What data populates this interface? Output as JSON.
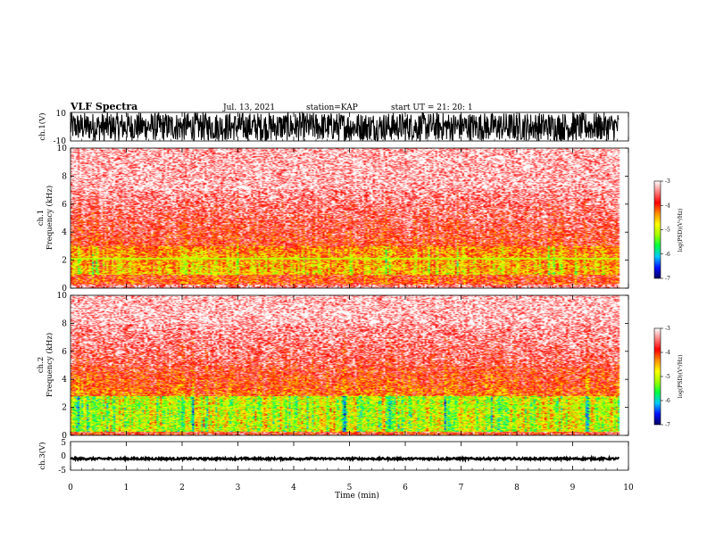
{
  "header": {
    "title": "VLF Spectra",
    "date": "Jul. 13, 2021",
    "station": "station=KAP",
    "start": "start UT =  21: 20: 1"
  },
  "chart_data": [
    {
      "type": "line",
      "panel": "ch1-waveform",
      "ylabel": "ch.1(V)",
      "ylim": [
        -10,
        10
      ],
      "yticks": [
        "10",
        "-10"
      ],
      "xlim": [
        0,
        10
      ],
      "x_extent_min": 9.83,
      "character": "dense noise spanning roughly -10 to 10 V"
    },
    {
      "type": "heatmap",
      "panel": "ch1-spectrogram",
      "ylabel": "ch.1\nFrequency (kHz)",
      "ylim": [
        0,
        10
      ],
      "yticks": [
        "0",
        "2",
        "4",
        "6",
        "8",
        "10"
      ],
      "xlim": [
        0,
        10
      ],
      "colorbar": {
        "label": "log(PSD)(V²/Hz)",
        "range": [
          -7,
          -3
        ],
        "ticks": [
          "-3",
          "-4",
          "-5",
          "-6",
          "-7"
        ],
        "colors": [
          "#000060",
          "#0010ff",
          "#00c8ff",
          "#00ff40",
          "#a0ff00",
          "#ffff00",
          "#ff9000",
          "#ff0000",
          "#ff8080",
          "#ffffff"
        ]
      },
      "features": {
        "strong_band_khz": [
          0.9,
          3.0
        ],
        "hum_line_khz": 2.1,
        "level_note": "mostly red/yellow below 3 kHz, fading to white above 7 kHz"
      }
    },
    {
      "type": "heatmap",
      "panel": "ch2-spectrogram",
      "ylabel": "ch.2\nFrequency (kHz)",
      "ylim": [
        0,
        10
      ],
      "yticks": [
        "0",
        "2",
        "4",
        "6",
        "8",
        "10"
      ],
      "xlim": [
        0,
        10
      ],
      "colorbar": {
        "label": "log(PSD)(V²/Hz)",
        "range": [
          -7,
          -3
        ],
        "ticks": [
          "-3",
          "-4",
          "-5",
          "-6",
          "-7"
        ],
        "colors": [
          "#000060",
          "#0010ff",
          "#00c8ff",
          "#00ff40",
          "#a0ff00",
          "#ffff00",
          "#ff9000",
          "#ff0000",
          "#ff8080",
          "#ffffff"
        ]
      },
      "features": {
        "strong_band_khz": [
          0.5,
          2.8
        ],
        "hum_line_khz": 2.1,
        "level_note": "green/yellow below 2.5 kHz, red up to ~5 kHz, white above"
      }
    },
    {
      "type": "line",
      "panel": "ch3-waveform",
      "ylabel": "ch.3(V)",
      "ylim": [
        -5,
        5
      ],
      "yticks": [
        "5",
        "0",
        "-5"
      ],
      "xlim": [
        0,
        10
      ],
      "x_extent_min": 9.83,
      "character": "nearly constant trace at about -1 V"
    }
  ],
  "xaxis": {
    "label": "Time (min)",
    "ticks": [
      "0",
      "1",
      "2",
      "3",
      "4",
      "5",
      "6",
      "7",
      "8",
      "9",
      "10"
    ],
    "range": [
      0,
      10
    ]
  }
}
